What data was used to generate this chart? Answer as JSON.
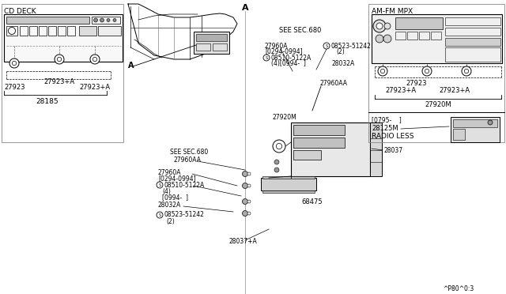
{
  "bg_color": "#f5f5f0",
  "line_color": "#111111",
  "cd_deck_label": "CD DECK",
  "am_fm_label": "AM-FM MPX",
  "see_sec_680": "SEE SEC.680",
  "radio_less": "RADIO LESS",
  "ref_code": "^P80^0:3",
  "parts": {
    "27923": "27923",
    "27923pA": "27923+A",
    "28185": "28185",
    "27960A": "27960A",
    "0294_0994": "[0294-0994]",
    "S_08510": "08510-5122A",
    "4_0994": "(4)[0994-  ]",
    "S_08523": "08523-51242",
    "qty2": "(2)",
    "28032A": "28032A",
    "27960AA": "27960AA",
    "27920M": "27920M",
    "28037": "28037",
    "68475": "68475",
    "28037pA": "28037+A",
    "0795": "[0795-    ]",
    "28125M": "28125M"
  }
}
